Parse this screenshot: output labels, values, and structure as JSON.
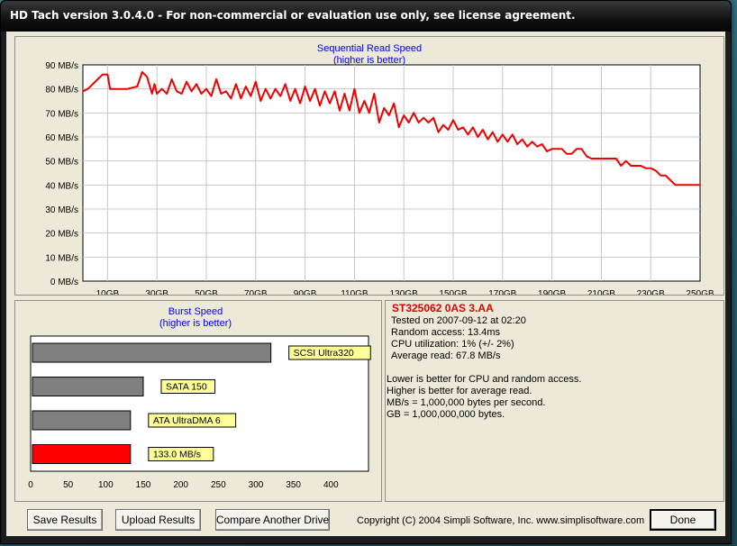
{
  "window": {
    "title": "HD Tach version 3.0.4.0  - For non-commercial or evaluation use only, see license agreement."
  },
  "chart_data": [
    {
      "type": "line",
      "title": "Sequential Read Speed",
      "subtitle": "(higher is better)",
      "ylim": [
        0,
        90
      ],
      "xlim": [
        0,
        250
      ],
      "y_ticks": [
        "0 MB/s",
        "10 MB/s",
        "20 MB/s",
        "30 MB/s",
        "40 MB/s",
        "50 MB/s",
        "60 MB/s",
        "70 MB/s",
        "80 MB/s",
        "90 MB/s"
      ],
      "x_ticks": [
        "10GB",
        "30GB",
        "50GB",
        "70GB",
        "90GB",
        "110GB",
        "130GB",
        "150GB",
        "170GB",
        "190GB",
        "210GB",
        "230GB",
        "250GB"
      ],
      "grid": true,
      "series": [
        {
          "color": "#ee0000",
          "x": [
            0,
            2,
            4,
            6,
            8,
            10,
            11,
            12,
            13,
            14,
            18,
            22,
            24,
            26,
            28,
            29,
            30,
            32,
            34,
            36,
            38,
            40,
            42,
            44,
            46,
            48,
            50,
            52,
            54,
            56,
            58,
            60,
            62,
            64,
            66,
            68,
            70,
            72,
            74,
            76,
            78,
            80,
            82,
            84,
            86,
            88,
            90,
            92,
            94,
            96,
            98,
            100,
            102,
            104,
            106,
            108,
            110,
            112,
            114,
            116,
            118,
            120,
            122,
            124,
            126,
            128,
            130,
            132,
            134,
            136,
            138,
            140,
            142,
            144,
            146,
            148,
            150,
            152,
            154,
            156,
            158,
            160,
            162,
            164,
            166,
            168,
            170,
            172,
            174,
            176,
            178,
            180,
            182,
            184,
            186,
            188,
            190,
            192,
            194,
            196,
            198,
            200,
            202,
            204,
            206,
            208,
            210,
            212,
            214,
            216,
            218,
            220,
            222,
            224,
            226,
            228,
            230,
            232,
            234,
            236,
            238,
            240,
            242,
            244,
            246,
            248,
            250
          ],
          "y": [
            79,
            80,
            82,
            84,
            86,
            86,
            80,
            80,
            80,
            80,
            80,
            81,
            87,
            85,
            78,
            82,
            78,
            80,
            78,
            84,
            79,
            78,
            83,
            79,
            82,
            78,
            80,
            77,
            84,
            78,
            79,
            76,
            82,
            76,
            81,
            77,
            83,
            75,
            80,
            76,
            80,
            77,
            82,
            75,
            80,
            74,
            81,
            75,
            80,
            73,
            79,
            74,
            79,
            71,
            78,
            71,
            80,
            70,
            75,
            70,
            78,
            66,
            72,
            69,
            74,
            64,
            69,
            66,
            70,
            66,
            68,
            66,
            68,
            62,
            65,
            63,
            67,
            63,
            64,
            61,
            64,
            60,
            63,
            59,
            62,
            58,
            61,
            58,
            61,
            57,
            59,
            56,
            58,
            56,
            57,
            54,
            55,
            55,
            55,
            53,
            53,
            55,
            55,
            52,
            51,
            51,
            51,
            51,
            51,
            51,
            48,
            50,
            48,
            48,
            48,
            47,
            47,
            46,
            44,
            44,
            42,
            40,
            40,
            40,
            40,
            40,
            40
          ]
        }
      ]
    },
    {
      "type": "bar",
      "title": "Burst Speed",
      "subtitle": "(higher is better)",
      "xlim": [
        0,
        450
      ],
      "x_ticks": [
        "0",
        "50",
        "100",
        "150",
        "200",
        "250",
        "300",
        "350",
        "400"
      ],
      "bars": [
        {
          "value": 320,
          "label": "SCSI Ultra320",
          "color": "#808080"
        },
        {
          "value": 150,
          "label": "SATA 150",
          "color": "#808080"
        },
        {
          "value": 133,
          "label": "ATA UltraDMA 6",
          "color": "#808080"
        },
        {
          "value": 133,
          "label": "133.0 MB/s",
          "color": "#ff0000"
        }
      ]
    }
  ],
  "info": {
    "drive": "ST325062 0AS 3.AA",
    "tested": "Tested on 2007-09-12 at 02:20",
    "random_access": "Random access: 13.4ms",
    "cpu": "CPU utilization: 1% (+/- 2%)",
    "average_read": "Average read: 67.8 MB/s",
    "note1": "Lower is better for CPU and random access.",
    "note2": "Higher is better for average read.",
    "note3": "MB/s = 1,000,000 bytes per second.",
    "note4": "GB = 1,000,000,000 bytes."
  },
  "buttons": {
    "save": "Save Results",
    "upload": "Upload Results",
    "compare": "Compare Another Drive",
    "done": "Done"
  },
  "copyright": "Copyright (C) 2004 Simpli Software, Inc. www.simplisoftware.com"
}
